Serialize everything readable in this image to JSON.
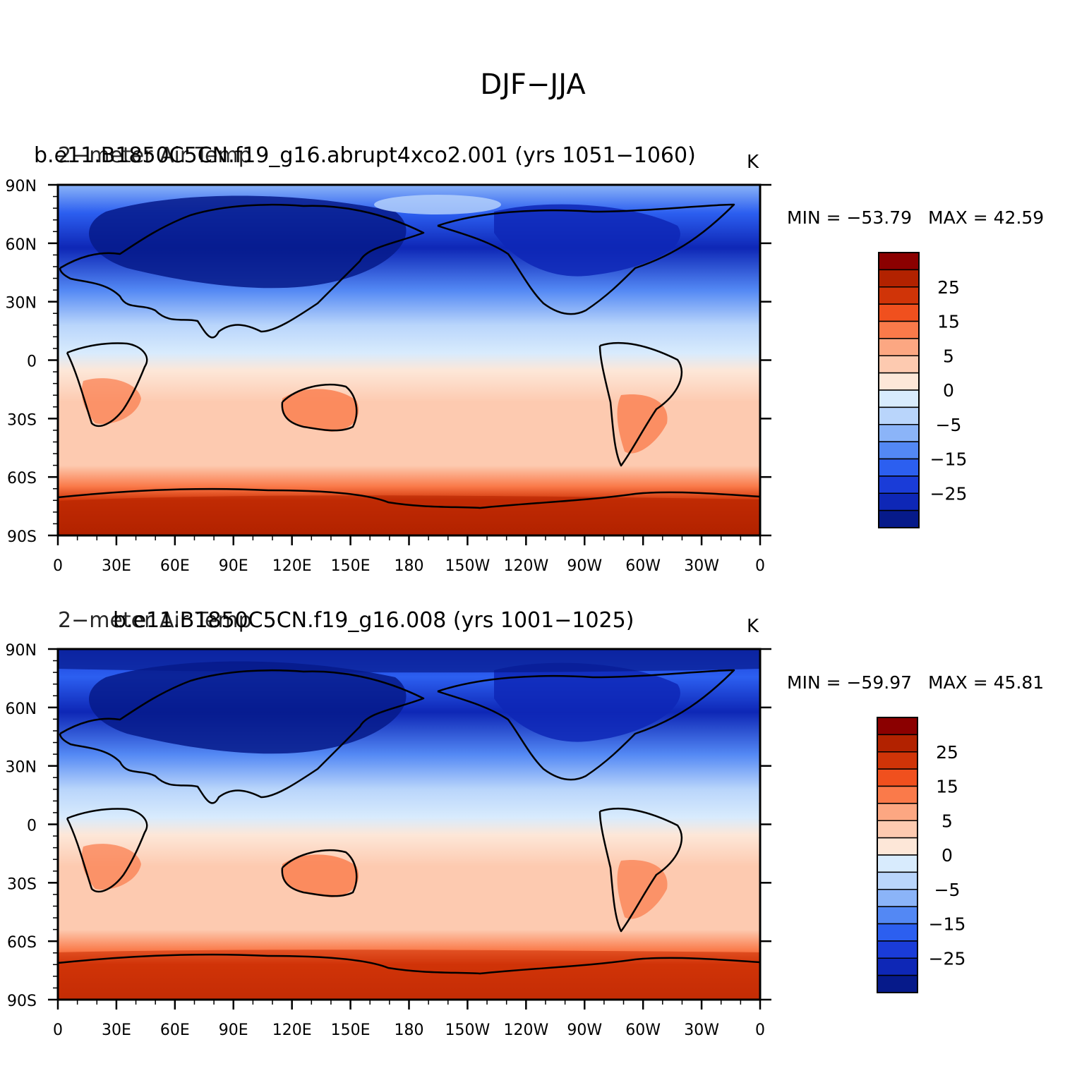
{
  "figure_title": "DJF−JJA",
  "colorbar_labels": [
    "25",
    "15",
    "5",
    "0",
    "−5",
    "−15",
    "−25"
  ],
  "colorbar_colors": [
    "#8b0000",
    "#b22200",
    "#d03408",
    "#f0501e",
    "#fa7a4a",
    "#fca782",
    "#fdcab0",
    "#fde7d8",
    "#d8ebfd",
    "#b9d5fb",
    "#8bb4f8",
    "#5388f4",
    "#2c5ff0",
    "#1a3cd8",
    "#0e27b6",
    "#061a8a"
  ],
  "panels": [
    {
      "case_label": "b.e11.B1850C5CN.f19_g16.abrupt4xco2.001 (yrs 1051−1060)",
      "variable_label": "2−meter Air Temp",
      "units": "K",
      "min_label": "MIN = −53.79",
      "max_label": "MAX =   42.59"
    },
    {
      "case_label": "b.e11.B1850C5CN.f19_g16.008 (yrs 1001−1025)",
      "variable_label": "2−meter Air Temp",
      "units": "K",
      "min_label": "MIN = −59.97",
      "max_label": "MAX =   45.81"
    }
  ],
  "lat_labels": [
    "90N",
    "60N",
    "30N",
    "0",
    "30S",
    "60S",
    "90S"
  ],
  "lon_labels": [
    "0",
    "30E",
    "60E",
    "90E",
    "120E",
    "150E",
    "180",
    "150W",
    "120W",
    "90W",
    "60W",
    "30W",
    "0"
  ],
  "chart_data": [
    {
      "type": "heatmap",
      "title": "DJF−JJA",
      "variable": "2−meter Air Temp",
      "units": "K",
      "case": "b.e11.B1850C5CN.f19_g16.abrupt4xco2.001 (yrs 1051−1060)",
      "min": -53.79,
      "max": 42.59,
      "xlim": [
        0,
        360
      ],
      "ylim": [
        -90,
        90
      ],
      "colorbar_ticks": [
        25,
        15,
        5,
        0,
        -5,
        -15,
        -25
      ]
    },
    {
      "type": "heatmap",
      "title": "DJF−JJA",
      "variable": "2−meter Air Temp",
      "units": "K",
      "case": "b.e11.B1850C5CN.f19_g16.008 (yrs 1001−1025)",
      "min": -59.97,
      "max": 45.81,
      "xlim": [
        0,
        360
      ],
      "ylim": [
        -90,
        90
      ],
      "colorbar_ticks": [
        25,
        15,
        5,
        0,
        -5,
        -15,
        -25
      ]
    }
  ]
}
